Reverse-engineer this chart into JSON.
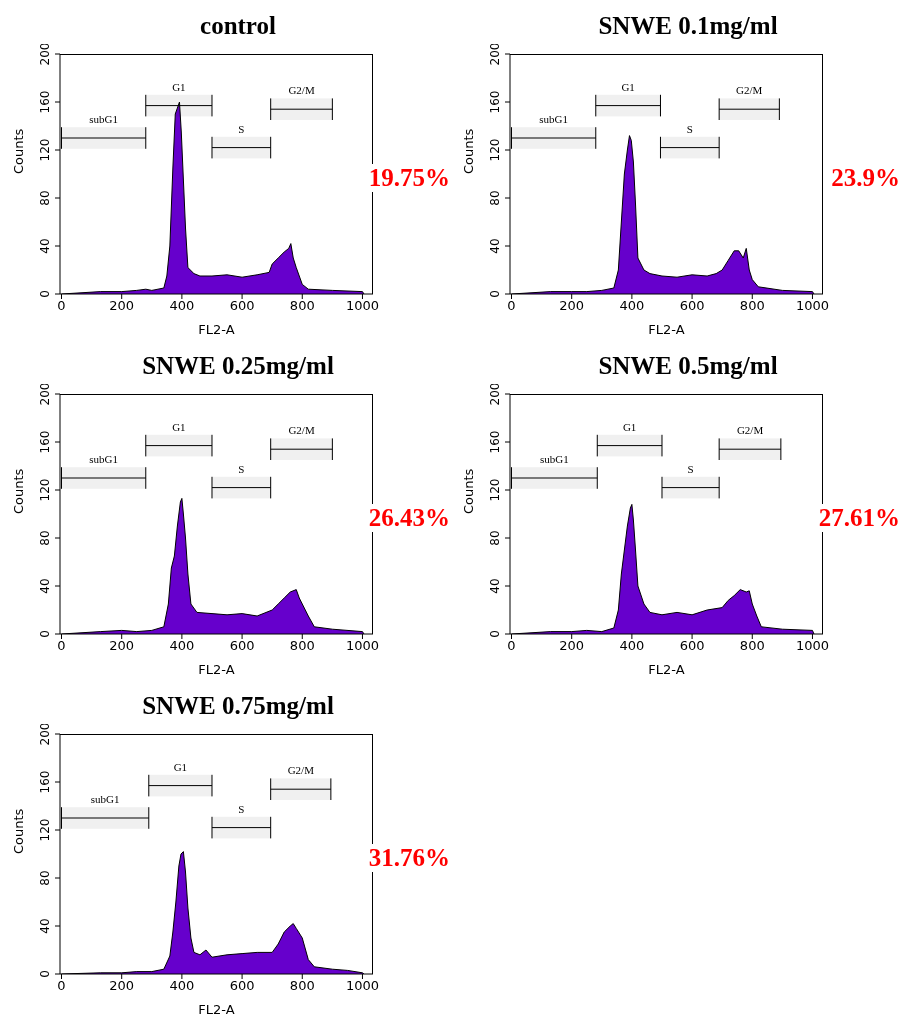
{
  "chart_data": [
    {
      "type": "area",
      "title": "control",
      "xlabel": "FL2-A",
      "ylabel": "Counts",
      "color": "#6600cc",
      "xlim": [
        -5,
        1035
      ],
      "ylim": [
        0,
        200
      ],
      "xticks": [
        0,
        200,
        400,
        600,
        800,
        1000
      ],
      "yticks": [
        0,
        40,
        80,
        120,
        160,
        200
      ],
      "annotations": [
        "19.75%"
      ],
      "bands": [
        {
          "axis": "x",
          "from": 0,
          "to": 280,
          "label": "subG1"
        },
        {
          "axis": "x",
          "from": 280,
          "to": 500,
          "label": "G1"
        },
        {
          "axis": "x",
          "from": 500,
          "to": 695,
          "label": "S"
        },
        {
          "axis": "x",
          "from": 695,
          "to": 900,
          "label": "G2/M"
        }
      ],
      "x": [
        0,
        130,
        200,
        250,
        280,
        300,
        340,
        350,
        360,
        370,
        378,
        385,
        392,
        398,
        405,
        412,
        420,
        440,
        460,
        500,
        550,
        600,
        650,
        690,
        700,
        720,
        740,
        755,
        762,
        770,
        780,
        790,
        800,
        820,
        900,
        1000,
        1005
      ],
      "values": [
        0,
        2,
        2,
        3,
        4,
        3,
        5,
        15,
        40,
        105,
        150,
        155,
        160,
        135,
        95,
        55,
        22,
        17,
        15,
        15,
        16,
        14,
        16,
        18,
        25,
        30,
        35,
        38,
        42,
        30,
        22,
        15,
        8,
        4,
        3,
        2,
        0
      ]
    },
    {
      "type": "area",
      "title": "SNWE 0.1mg/ml",
      "xlabel": "FL2-A",
      "ylabel": "Counts",
      "color": "#6600cc",
      "xlim": [
        -5,
        1035
      ],
      "ylim": [
        0,
        200
      ],
      "xticks": [
        0,
        200,
        400,
        600,
        800,
        1000
      ],
      "yticks": [
        0,
        40,
        80,
        120,
        160,
        200
      ],
      "annotations": [
        "23.9%"
      ],
      "bands": [
        {
          "axis": "x",
          "from": 0,
          "to": 280,
          "label": "subG1"
        },
        {
          "axis": "x",
          "from": 280,
          "to": 495,
          "label": "G1"
        },
        {
          "axis": "x",
          "from": 495,
          "to": 690,
          "label": "S"
        },
        {
          "axis": "x",
          "from": 690,
          "to": 890,
          "label": "G2/M"
        }
      ],
      "x": [
        0,
        130,
        200,
        250,
        300,
        340,
        355,
        365,
        375,
        385,
        392,
        398,
        405,
        412,
        420,
        440,
        460,
        500,
        550,
        600,
        650,
        680,
        700,
        720,
        740,
        755,
        770,
        780,
        790,
        800,
        820,
        900,
        1000,
        1005
      ],
      "values": [
        0,
        2,
        2,
        2,
        3,
        5,
        20,
        60,
        100,
        120,
        132,
        128,
        110,
        75,
        30,
        20,
        17,
        15,
        14,
        16,
        15,
        17,
        20,
        28,
        36,
        36,
        30,
        38,
        20,
        12,
        6,
        3,
        2,
        0
      ]
    },
    {
      "type": "area",
      "title": "SNWE 0.25mg/ml",
      "xlabel": "FL2-A",
      "ylabel": "Counts",
      "color": "#6600cc",
      "xlim": [
        -5,
        1035
      ],
      "ylim": [
        0,
        200
      ],
      "xticks": [
        0,
        200,
        400,
        600,
        800,
        1000
      ],
      "yticks": [
        0,
        40,
        80,
        120,
        160,
        200
      ],
      "annotations": [
        "26.43%"
      ],
      "bands": [
        {
          "axis": "x",
          "from": 0,
          "to": 280,
          "label": "subG1"
        },
        {
          "axis": "x",
          "from": 280,
          "to": 500,
          "label": "G1"
        },
        {
          "axis": "x",
          "from": 500,
          "to": 695,
          "label": "S"
        },
        {
          "axis": "x",
          "from": 695,
          "to": 900,
          "label": "G2/M"
        }
      ],
      "x": [
        0,
        130,
        200,
        250,
        300,
        340,
        355,
        365,
        375,
        385,
        395,
        400,
        405,
        412,
        420,
        430,
        450,
        500,
        550,
        600,
        650,
        700,
        720,
        740,
        760,
        780,
        790,
        800,
        820,
        840,
        900,
        1000,
        1005
      ],
      "values": [
        0,
        2,
        3,
        2,
        3,
        6,
        25,
        55,
        65,
        90,
        110,
        113,
        100,
        80,
        50,
        25,
        18,
        17,
        16,
        17,
        15,
        20,
        25,
        30,
        35,
        37,
        30,
        25,
        15,
        6,
        4,
        2,
        0
      ]
    },
    {
      "type": "area",
      "title": "SNWE 0.5mg/ml",
      "xlabel": "FL2-A",
      "ylabel": "Counts",
      "color": "#6600cc",
      "xlim": [
        -5,
        1035
      ],
      "ylim": [
        0,
        200
      ],
      "xticks": [
        0,
        200,
        400,
        600,
        800,
        1000
      ],
      "yticks": [
        0,
        40,
        80,
        120,
        160,
        200
      ],
      "annotations": [
        "27.61%"
      ],
      "bands": [
        {
          "axis": "x",
          "from": 0,
          "to": 285,
          "label": "subG1"
        },
        {
          "axis": "x",
          "from": 285,
          "to": 500,
          "label": "G1"
        },
        {
          "axis": "x",
          "from": 500,
          "to": 690,
          "label": "S"
        },
        {
          "axis": "x",
          "from": 690,
          "to": 895,
          "label": "G2/M"
        }
      ],
      "x": [
        0,
        130,
        200,
        250,
        300,
        340,
        355,
        365,
        375,
        385,
        395,
        400,
        405,
        412,
        420,
        440,
        460,
        500,
        550,
        600,
        650,
        700,
        720,
        740,
        760,
        780,
        790,
        800,
        815,
        830,
        900,
        1000,
        1005
      ],
      "values": [
        0,
        2,
        2,
        3,
        2,
        5,
        20,
        50,
        70,
        90,
        105,
        108,
        95,
        70,
        40,
        25,
        18,
        16,
        18,
        16,
        20,
        22,
        28,
        32,
        37,
        35,
        36,
        25,
        15,
        6,
        4,
        3,
        0
      ]
    },
    {
      "type": "area",
      "title": "SNWE 0.75mg/ml",
      "xlabel": "FL2-A",
      "ylabel": "Counts",
      "color": "#6600cc",
      "xlim": [
        -5,
        1035
      ],
      "ylim": [
        0,
        200
      ],
      "xticks": [
        0,
        200,
        400,
        600,
        800,
        1000
      ],
      "yticks": [
        0,
        40,
        80,
        120,
        160,
        200
      ],
      "annotations": [
        "31.76%"
      ],
      "bands": [
        {
          "axis": "x",
          "from": 0,
          "to": 290,
          "label": "subG1"
        },
        {
          "axis": "x",
          "from": 290,
          "to": 500,
          "label": "G1"
        },
        {
          "axis": "x",
          "from": 500,
          "to": 695,
          "label": "S"
        },
        {
          "axis": "x",
          "from": 695,
          "to": 895,
          "label": "G2/M"
        }
      ],
      "x": [
        0,
        130,
        200,
        250,
        300,
        340,
        360,
        370,
        380,
        390,
        397,
        405,
        412,
        420,
        430,
        440,
        460,
        480,
        500,
        550,
        600,
        650,
        700,
        720,
        740,
        760,
        770,
        780,
        800,
        820,
        840,
        900,
        950,
        1000,
        1005
      ],
      "values": [
        0,
        1,
        1,
        2,
        2,
        4,
        15,
        35,
        60,
        90,
        100,
        102,
        85,
        55,
        30,
        18,
        16,
        20,
        14,
        16,
        17,
        18,
        18,
        25,
        35,
        40,
        42,
        38,
        30,
        12,
        6,
        4,
        3,
        1,
        0
      ]
    }
  ]
}
